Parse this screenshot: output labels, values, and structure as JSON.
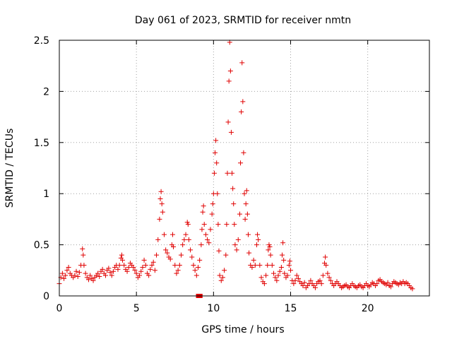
{
  "chart_data": {
    "type": "scatter",
    "title": "Day 061 of 2023, SRMTID for receiver nmtn",
    "xlabel": "GPS time / hours",
    "ylabel": "SRMTID / TECUs",
    "xlim": [
      0,
      24
    ],
    "ylim": [
      0,
      2.5
    ],
    "xticks": [
      0,
      5,
      10,
      15,
      20
    ],
    "xtick_labels": [
      "0",
      "5",
      "10",
      "15",
      "20"
    ],
    "yticks": [
      0,
      0.5,
      1,
      1.5,
      2,
      2.5
    ],
    "ytick_labels": [
      "0",
      "0.5",
      "1",
      "1.5",
      "2",
      "2.5"
    ],
    "grid": true,
    "marker_color": "#e00000",
    "series": [
      {
        "name": "SRMTID",
        "marker": "plus",
        "points": [
          [
            0.0,
            0.12
          ],
          [
            0.1,
            0.18
          ],
          [
            0.2,
            0.22
          ],
          [
            0.3,
            0.17
          ],
          [
            0.4,
            0.2
          ],
          [
            0.5,
            0.25
          ],
          [
            0.6,
            0.28
          ],
          [
            0.7,
            0.22
          ],
          [
            0.8,
            0.2
          ],
          [
            0.9,
            0.18
          ],
          [
            1.0,
            0.2
          ],
          [
            1.1,
            0.24
          ],
          [
            1.2,
            0.19
          ],
          [
            1.3,
            0.23
          ],
          [
            1.4,
            0.3
          ],
          [
            1.5,
            0.46
          ],
          [
            1.55,
            0.4
          ],
          [
            1.6,
            0.3
          ],
          [
            1.7,
            0.22
          ],
          [
            1.8,
            0.18
          ],
          [
            1.9,
            0.16
          ],
          [
            2.0,
            0.2
          ],
          [
            2.1,
            0.17
          ],
          [
            2.2,
            0.15
          ],
          [
            2.3,
            0.18
          ],
          [
            2.4,
            0.2
          ],
          [
            2.5,
            0.22
          ],
          [
            2.6,
            0.19
          ],
          [
            2.7,
            0.24
          ],
          [
            2.8,
            0.26
          ],
          [
            2.9,
            0.22
          ],
          [
            3.0,
            0.2
          ],
          [
            3.1,
            0.25
          ],
          [
            3.2,
            0.27
          ],
          [
            3.3,
            0.23
          ],
          [
            3.4,
            0.2
          ],
          [
            3.5,
            0.24
          ],
          [
            3.6,
            0.28
          ],
          [
            3.7,
            0.3
          ],
          [
            3.8,
            0.26
          ],
          [
            3.9,
            0.3
          ],
          [
            4.0,
            0.37
          ],
          [
            4.05,
            0.4
          ],
          [
            4.1,
            0.35
          ],
          [
            4.2,
            0.3
          ],
          [
            4.3,
            0.26
          ],
          [
            4.4,
            0.24
          ],
          [
            4.5,
            0.28
          ],
          [
            4.6,
            0.32
          ],
          [
            4.7,
            0.3
          ],
          [
            4.8,
            0.28
          ],
          [
            4.9,
            0.25
          ],
          [
            5.0,
            0.22
          ],
          [
            5.1,
            0.18
          ],
          [
            5.2,
            0.2
          ],
          [
            5.3,
            0.24
          ],
          [
            5.4,
            0.28
          ],
          [
            5.5,
            0.35
          ],
          [
            5.6,
            0.3
          ],
          [
            5.7,
            0.22
          ],
          [
            5.8,
            0.2
          ],
          [
            5.9,
            0.26
          ],
          [
            6.0,
            0.3
          ],
          [
            6.1,
            0.33
          ],
          [
            6.2,
            0.25
          ],
          [
            6.3,
            0.4
          ],
          [
            6.4,
            0.55
          ],
          [
            6.5,
            0.75
          ],
          [
            6.55,
            0.95
          ],
          [
            6.6,
            1.02
          ],
          [
            6.65,
            0.9
          ],
          [
            6.7,
            0.82
          ],
          [
            6.8,
            0.6
          ],
          [
            6.9,
            0.45
          ],
          [
            7.0,
            0.42
          ],
          [
            7.1,
            0.38
          ],
          [
            7.2,
            0.36
          ],
          [
            7.3,
            0.5
          ],
          [
            7.35,
            0.6
          ],
          [
            7.4,
            0.48
          ],
          [
            7.5,
            0.3
          ],
          [
            7.6,
            0.22
          ],
          [
            7.7,
            0.25
          ],
          [
            7.8,
            0.3
          ],
          [
            7.9,
            0.4
          ],
          [
            8.0,
            0.5
          ],
          [
            8.1,
            0.55
          ],
          [
            8.2,
            0.6
          ],
          [
            8.3,
            0.72
          ],
          [
            8.35,
            0.7
          ],
          [
            8.4,
            0.55
          ],
          [
            8.5,
            0.45
          ],
          [
            8.6,
            0.38
          ],
          [
            8.7,
            0.3
          ],
          [
            8.8,
            0.25
          ],
          [
            8.9,
            0.2
          ],
          [
            9.0,
            0.28
          ],
          [
            9.1,
            0.35
          ],
          [
            9.2,
            0.5
          ],
          [
            9.25,
            0.65
          ],
          [
            9.3,
            0.82
          ],
          [
            9.35,
            0.88
          ],
          [
            9.4,
            0.7
          ],
          [
            9.5,
            0.6
          ],
          [
            9.6,
            0.55
          ],
          [
            9.7,
            0.52
          ],
          [
            9.8,
            0.65
          ],
          [
            9.9,
            0.8
          ],
          [
            9.95,
            0.9
          ],
          [
            10.0,
            1.0
          ],
          [
            10.05,
            1.2
          ],
          [
            10.1,
            1.4
          ],
          [
            10.15,
            1.52
          ],
          [
            10.2,
            1.3
          ],
          [
            10.25,
            1.0
          ],
          [
            10.3,
            0.7
          ],
          [
            10.35,
            0.44
          ],
          [
            10.4,
            0.2
          ],
          [
            10.5,
            0.15
          ],
          [
            10.6,
            0.18
          ],
          [
            10.7,
            0.25
          ],
          [
            10.8,
            0.4
          ],
          [
            10.85,
            0.7
          ],
          [
            10.9,
            1.2
          ],
          [
            10.95,
            1.7
          ],
          [
            11.0,
            2.1
          ],
          [
            11.05,
            2.48
          ],
          [
            11.1,
            2.2
          ],
          [
            11.15,
            1.6
          ],
          [
            11.2,
            1.2
          ],
          [
            11.25,
            1.05
          ],
          [
            11.3,
            0.9
          ],
          [
            11.35,
            0.7
          ],
          [
            11.4,
            0.5
          ],
          [
            11.5,
            0.45
          ],
          [
            11.6,
            0.55
          ],
          [
            11.7,
            0.8
          ],
          [
            11.75,
            1.3
          ],
          [
            11.8,
            1.8
          ],
          [
            11.85,
            2.28
          ],
          [
            11.9,
            1.9
          ],
          [
            11.95,
            1.4
          ],
          [
            12.0,
            1.0
          ],
          [
            12.05,
            0.75
          ],
          [
            12.1,
            0.9
          ],
          [
            12.15,
            1.03
          ],
          [
            12.2,
            0.8
          ],
          [
            12.25,
            0.6
          ],
          [
            12.3,
            0.42
          ],
          [
            12.4,
            0.3
          ],
          [
            12.5,
            0.28
          ],
          [
            12.6,
            0.35
          ],
          [
            12.7,
            0.3
          ],
          [
            12.8,
            0.5
          ],
          [
            12.85,
            0.6
          ],
          [
            12.9,
            0.55
          ],
          [
            13.0,
            0.3
          ],
          [
            13.1,
            0.18
          ],
          [
            13.2,
            0.14
          ],
          [
            13.3,
            0.12
          ],
          [
            13.4,
            0.2
          ],
          [
            13.5,
            0.3
          ],
          [
            13.55,
            0.45
          ],
          [
            13.6,
            0.5
          ],
          [
            13.65,
            0.48
          ],
          [
            13.7,
            0.4
          ],
          [
            13.8,
            0.3
          ],
          [
            13.9,
            0.22
          ],
          [
            14.0,
            0.18
          ],
          [
            14.1,
            0.15
          ],
          [
            14.2,
            0.2
          ],
          [
            14.3,
            0.24
          ],
          [
            14.4,
            0.28
          ],
          [
            14.45,
            0.4
          ],
          [
            14.5,
            0.52
          ],
          [
            14.55,
            0.35
          ],
          [
            14.6,
            0.22
          ],
          [
            14.7,
            0.18
          ],
          [
            14.8,
            0.2
          ],
          [
            14.9,
            0.3
          ],
          [
            14.95,
            0.34
          ],
          [
            15.0,
            0.25
          ],
          [
            15.1,
            0.15
          ],
          [
            15.2,
            0.12
          ],
          [
            15.3,
            0.15
          ],
          [
            15.4,
            0.2
          ],
          [
            15.5,
            0.17
          ],
          [
            15.6,
            0.14
          ],
          [
            15.7,
            0.12
          ],
          [
            15.8,
            0.1
          ],
          [
            15.9,
            0.13
          ],
          [
            16.0,
            0.08
          ],
          [
            16.1,
            0.1
          ],
          [
            16.2,
            0.12
          ],
          [
            16.3,
            0.15
          ],
          [
            16.4,
            0.12
          ],
          [
            16.5,
            0.1
          ],
          [
            16.6,
            0.08
          ],
          [
            16.7,
            0.12
          ],
          [
            16.8,
            0.14
          ],
          [
            16.9,
            0.15
          ],
          [
            17.0,
            0.12
          ],
          [
            17.1,
            0.2
          ],
          [
            17.2,
            0.32
          ],
          [
            17.25,
            0.38
          ],
          [
            17.3,
            0.3
          ],
          [
            17.4,
            0.22
          ],
          [
            17.5,
            0.18
          ],
          [
            17.6,
            0.15
          ],
          [
            17.7,
            0.12
          ],
          [
            17.8,
            0.1
          ],
          [
            17.9,
            0.12
          ],
          [
            18.0,
            0.14
          ],
          [
            18.1,
            0.12
          ],
          [
            18.2,
            0.1
          ],
          [
            18.3,
            0.08
          ],
          [
            18.4,
            0.09
          ],
          [
            18.5,
            0.1
          ],
          [
            18.6,
            0.11
          ],
          [
            18.7,
            0.09
          ],
          [
            18.8,
            0.08
          ],
          [
            18.9,
            0.1
          ],
          [
            19.0,
            0.12
          ],
          [
            19.1,
            0.1
          ],
          [
            19.2,
            0.09
          ],
          [
            19.3,
            0.08
          ],
          [
            19.4,
            0.1
          ],
          [
            19.5,
            0.11
          ],
          [
            19.6,
            0.09
          ],
          [
            19.7,
            0.08
          ],
          [
            19.8,
            0.1
          ],
          [
            19.9,
            0.12
          ],
          [
            20.0,
            0.1
          ],
          [
            20.1,
            0.09
          ],
          [
            20.2,
            0.11
          ],
          [
            20.3,
            0.13
          ],
          [
            20.4,
            0.12
          ],
          [
            20.5,
            0.1
          ],
          [
            20.6,
            0.12
          ],
          [
            20.7,
            0.15
          ],
          [
            20.8,
            0.16
          ],
          [
            20.9,
            0.14
          ],
          [
            21.0,
            0.13
          ],
          [
            21.1,
            0.12
          ],
          [
            21.2,
            0.11
          ],
          [
            21.3,
            0.13
          ],
          [
            21.4,
            0.1
          ],
          [
            21.5,
            0.09
          ],
          [
            21.6,
            0.12
          ],
          [
            21.7,
            0.14
          ],
          [
            21.8,
            0.13
          ],
          [
            21.9,
            0.12
          ],
          [
            22.0,
            0.11
          ],
          [
            22.1,
            0.13
          ],
          [
            22.2,
            0.12
          ],
          [
            22.3,
            0.14
          ],
          [
            22.4,
            0.12
          ],
          [
            22.5,
            0.13
          ],
          [
            22.6,
            0.12
          ],
          [
            22.7,
            0.1
          ],
          [
            22.8,
            0.08
          ],
          [
            22.9,
            0.07
          ]
        ]
      }
    ],
    "outlier_squares": [
      [
        9.0,
        0.0
      ],
      [
        9.15,
        0.0
      ]
    ]
  }
}
